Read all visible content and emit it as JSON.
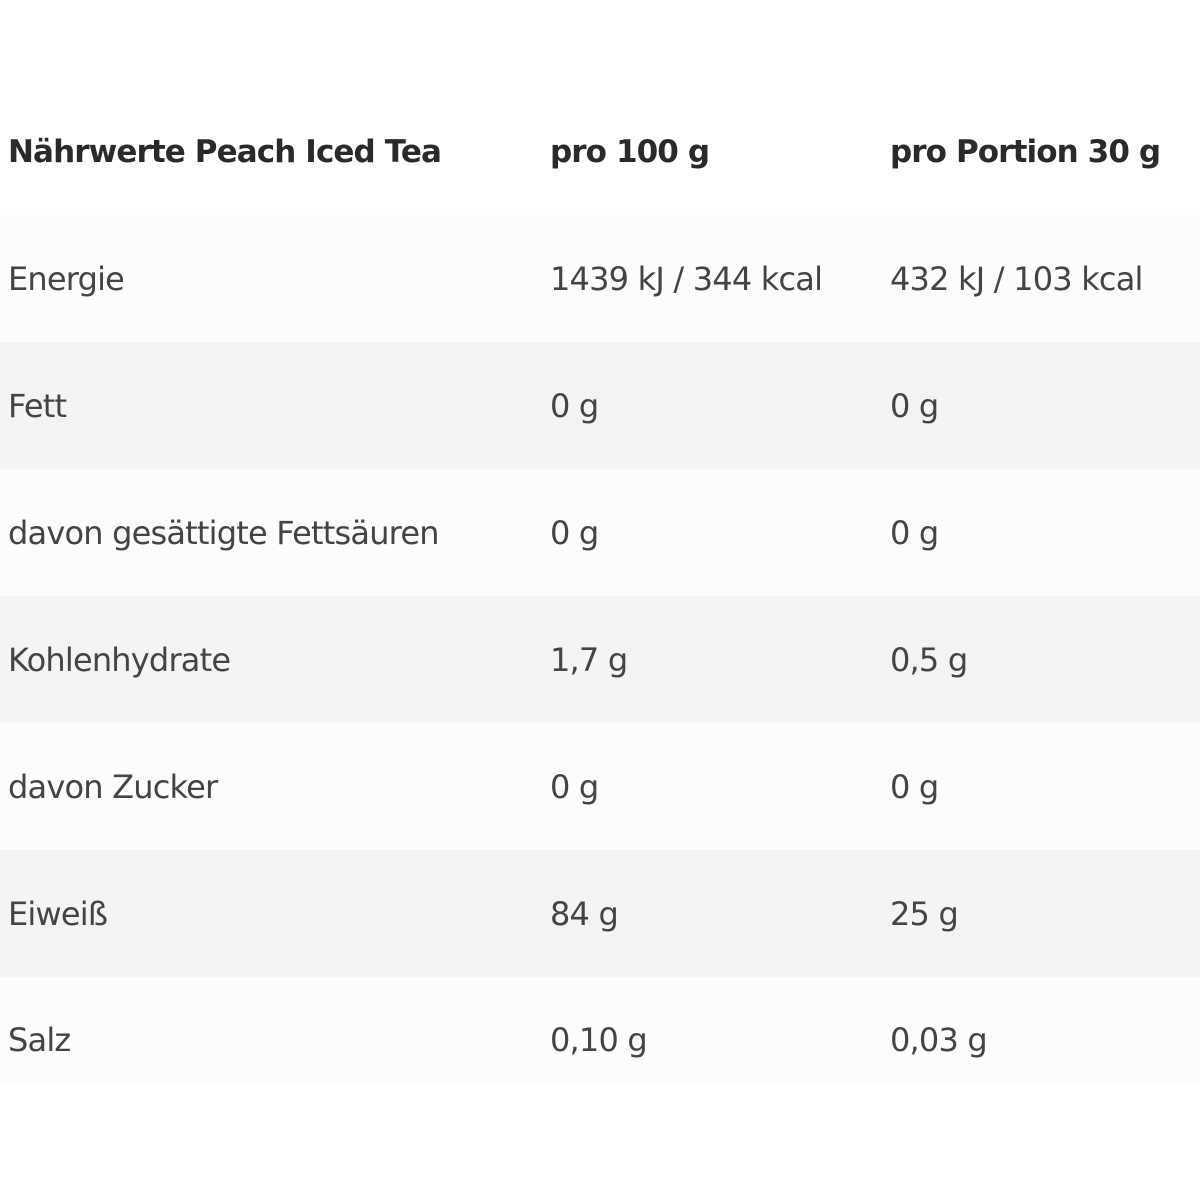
{
  "table": {
    "headers": [
      "Nährwerte Peach Iced Tea",
      "pro 100 g",
      "pro Portion 30 g"
    ],
    "rows": [
      [
        "Energie",
        "1439 kJ / 344 kcal",
        "432 kJ / 103 kcal"
      ],
      [
        "Fett",
        "0 g",
        "0 g"
      ],
      [
        "davon gesättigte Fettsäuren",
        "0 g",
        "0 g"
      ],
      [
        "Kohlenhydrate",
        "1,7 g",
        "0,5 g"
      ],
      [
        "davon Zucker",
        "0 g",
        "0 g"
      ],
      [
        "Eiweiß",
        "84 g",
        "25 g"
      ],
      [
        "Salz",
        "0,10 g",
        "0,03 g"
      ]
    ]
  }
}
